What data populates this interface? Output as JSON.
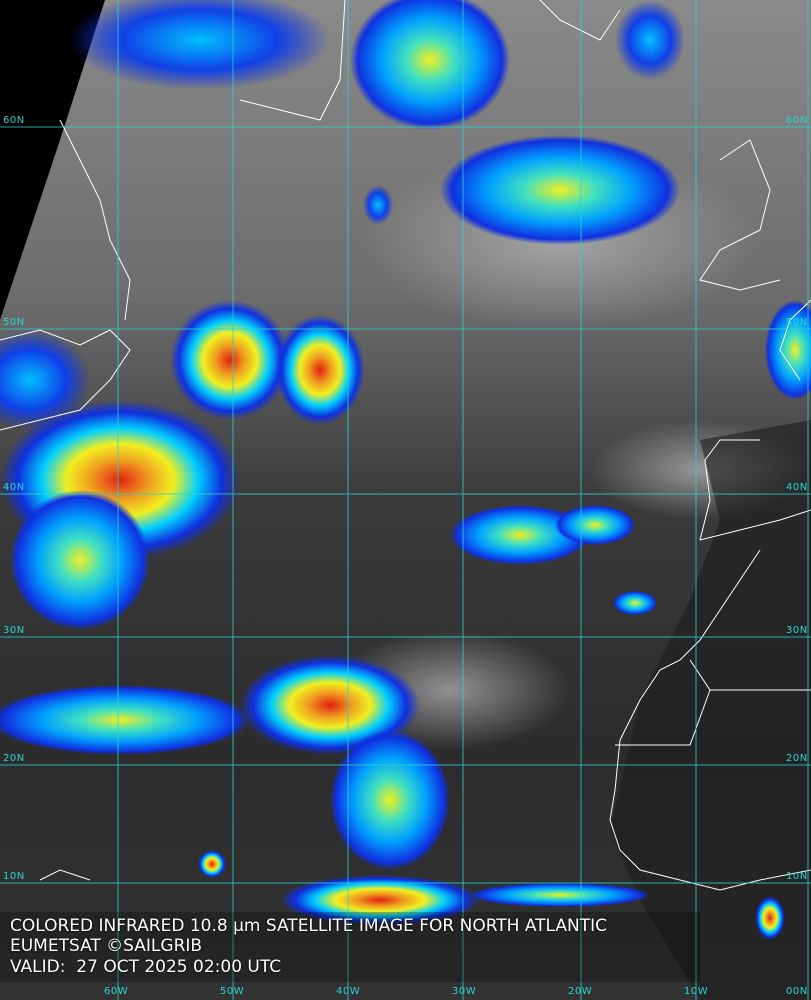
{
  "caption": {
    "title": "COLORED INFRARED 10.8 µm SATELLITE IMAGE FOR NORTH ATLANTIC",
    "credit": "EUMETSAT ©SAILGRIB",
    "valid": "VALID:  27 OCT 2025 02:00 UTC"
  },
  "grid": {
    "latitudes": [
      "60N",
      "50N",
      "40N",
      "30N",
      "20N",
      "10N"
    ],
    "longitudes": [
      "60W",
      "50W",
      "40W",
      "30W",
      "20W",
      "10W",
      "00N"
    ],
    "color": "#29d3d3"
  },
  "colors": {
    "cold_cloud_blue": "#1030e0",
    "cyan": "#00d0ff",
    "yellow": "#f0f020",
    "red": "#e02010",
    "coastline": "#ffffff"
  }
}
